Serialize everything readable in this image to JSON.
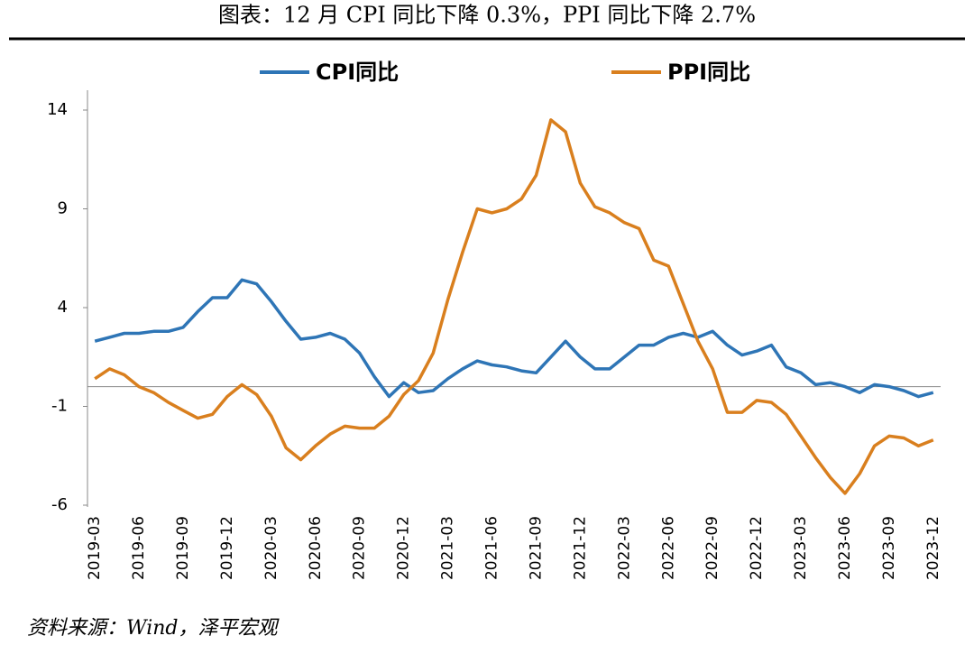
{
  "chart_data": {
    "type": "line",
    "title": "图表：12 月 CPI 同比下降 0.3%，PPI 同比下降 2.7%",
    "source": "资料来源：Wind，泽平宏观",
    "categories": [
      "2019-03",
      null,
      null,
      "2019-06",
      null,
      null,
      "2019-09",
      null,
      null,
      "2019-12",
      null,
      null,
      "2020-03",
      null,
      null,
      "2020-06",
      null,
      null,
      "2020-09",
      null,
      null,
      "2020-12",
      null,
      null,
      "2021-03",
      null,
      null,
      "2021-06",
      null,
      null,
      "2021-09",
      null,
      null,
      "2021-12",
      null,
      null,
      "2022-03",
      null,
      null,
      "2022-06",
      null,
      null,
      "2022-09",
      null,
      null,
      "2022-12",
      null,
      null,
      "2023-03",
      null,
      null,
      "2023-06",
      null,
      null,
      "2023-09",
      null,
      null,
      "2023-12"
    ],
    "series": [
      {
        "name": "CPI同比",
        "color": "#2e75b6",
        "values": [
          2.3,
          2.5,
          2.7,
          2.7,
          2.8,
          2.8,
          3.0,
          3.8,
          4.5,
          4.5,
          5.4,
          5.2,
          4.3,
          3.3,
          2.4,
          2.5,
          2.7,
          2.4,
          1.7,
          0.5,
          -0.5,
          0.2,
          -0.3,
          -0.2,
          0.4,
          0.9,
          1.3,
          1.1,
          1.0,
          0.8,
          0.7,
          1.5,
          2.3,
          1.5,
          0.9,
          0.9,
          1.5,
          2.1,
          2.1,
          2.5,
          2.7,
          2.5,
          2.8,
          2.1,
          1.6,
          1.8,
          2.1,
          1.0,
          0.7,
          0.1,
          0.2,
          0.0,
          -0.3,
          0.1,
          0.0,
          -0.2,
          -0.5,
          -0.3
        ]
      },
      {
        "name": "PPI同比",
        "color": "#d97f1e",
        "values": [
          0.4,
          0.9,
          0.6,
          0.0,
          -0.3,
          -0.8,
          -1.2,
          -1.6,
          -1.4,
          -0.5,
          0.1,
          -0.4,
          -1.5,
          -3.1,
          -3.7,
          -3.0,
          -2.4,
          -2.0,
          -2.1,
          -2.1,
          -1.5,
          -0.4,
          0.3,
          1.7,
          4.4,
          6.8,
          9.0,
          8.8,
          9.0,
          9.5,
          10.7,
          13.5,
          12.9,
          10.3,
          9.1,
          8.8,
          8.3,
          8.0,
          6.4,
          6.1,
          4.2,
          2.3,
          0.9,
          -1.3,
          -1.3,
          -0.7,
          -0.8,
          -1.4,
          -2.5,
          -3.6,
          -4.6,
          -5.4,
          -4.4,
          -3.0,
          -2.5,
          -2.6,
          -3.0,
          -2.7
        ]
      }
    ],
    "ylim": [
      -6,
      14
    ],
    "yticks": [
      14,
      9,
      4,
      -1,
      -6
    ]
  }
}
